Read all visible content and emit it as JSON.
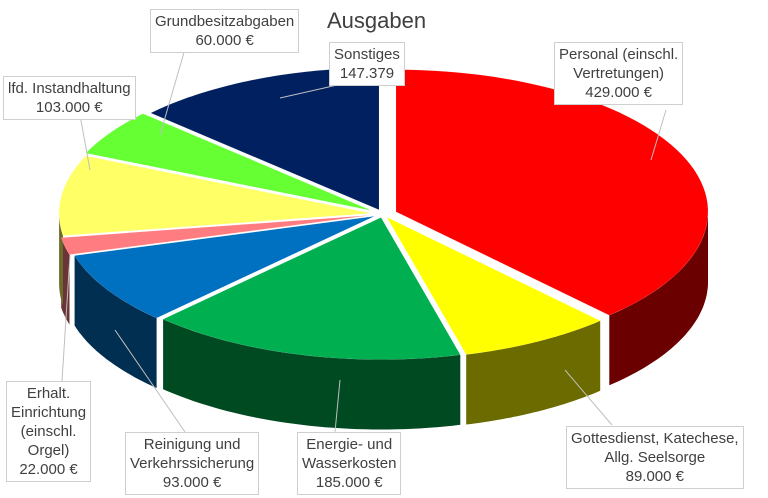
{
  "chart_data": {
    "type": "pie",
    "style": "3d-exploded",
    "title": "Ausgaben",
    "currency": "€",
    "slices": [
      {
        "name": "Personal (einschl. Vertretungen)",
        "label_lines": [
          "Personal (einschl.",
          "Vertretungen)"
        ],
        "value": 429000,
        "value_label": "429.000 €",
        "color": "#ff0000"
      },
      {
        "name": "Gottesdienst, Katechese, Allg. Seelsorge",
        "label_lines": [
          "Gottesdienst, Katechese,",
          "Allg. Seelsorge"
        ],
        "value": 89000,
        "value_label": "89.000 €",
        "color": "#ffff00"
      },
      {
        "name": "Energie- und Wasserkosten",
        "label_lines": [
          "Energie- und",
          "Wasserkosten"
        ],
        "value": 185000,
        "value_label": "185.000 €",
        "color": "#00b050"
      },
      {
        "name": "Reinigung und Verkehrssicherung",
        "label_lines": [
          "Reinigung und",
          "Verkehrssicherung"
        ],
        "value": 93000,
        "value_label": "93.000 €",
        "color": "#0070c0"
      },
      {
        "name": "Erhalt. Einrichtung (einschl. Orgel)",
        "label_lines": [
          "Erhalt.",
          "Einrichtung",
          "(einschl.",
          "Orgel)"
        ],
        "value": 22000,
        "value_label": "22.000 €",
        "color": "#ff7c80"
      },
      {
        "name": "lfd. Instandhaltung",
        "label_lines": [
          "lfd. Instandhaltung"
        ],
        "value": 103000,
        "value_label": "103.000 €",
        "color": "#ffff66"
      },
      {
        "name": "Grundbesitzabgaben",
        "label_lines": [
          "Grundbesitzabgaben"
        ],
        "value": 60000,
        "value_label": "60.000 €",
        "color": "#66ff33"
      },
      {
        "name": "Sonstiges",
        "label_lines": [
          "Sonstiges"
        ],
        "value": 147379,
        "value_label": "147.379",
        "color": "#002060"
      }
    ]
  }
}
